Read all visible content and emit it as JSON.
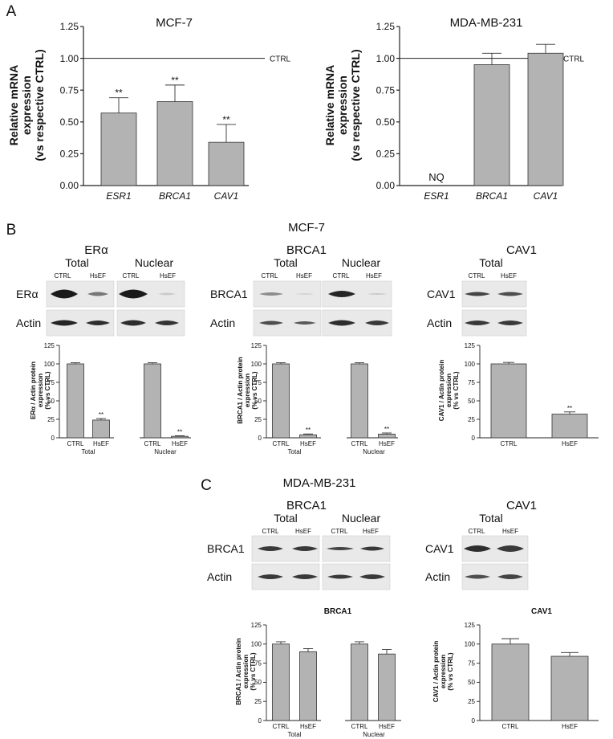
{
  "panels": {
    "A": {
      "letter": "A",
      "ylabel": [
        "Relative mRNA",
        "expression",
        "(vs respective CTRL)"
      ],
      "ref_label": "CTRL",
      "charts": [
        {
          "title": "MCF-7",
          "nq": "",
          "categories": [
            "ESR1",
            "BRCA1",
            "CAV1"
          ],
          "values": [
            0.57,
            0.66,
            0.34
          ],
          "errors": [
            0.12,
            0.13,
            0.14
          ],
          "sig": [
            "**",
            "**",
            "**"
          ]
        },
        {
          "title": "MDA-MB-231",
          "nq": "NQ",
          "categories": [
            "ESR1",
            "BRCA1",
            "CAV1"
          ],
          "values": [
            null,
            0.95,
            1.04
          ],
          "errors": [
            0,
            0.09,
            0.07
          ],
          "sig": [
            "",
            "",
            ""
          ]
        }
      ]
    },
    "B": {
      "letter": "B",
      "title": "MCF-7",
      "blots": [
        {
          "protein": "ERα",
          "groups": [
            "Total",
            "Nuclear"
          ],
          "lanes": [
            "CTRL",
            "HsEF"
          ],
          "rows": [
            "ERα",
            "Actin"
          ]
        },
        {
          "protein": "BRCA1",
          "groups": [
            "Total",
            "Nuclear"
          ],
          "lanes": [
            "CTRL",
            "HsEF"
          ],
          "rows": [
            "BRCA1",
            "Actin"
          ]
        },
        {
          "protein": "CAV1",
          "groups": [
            "Total"
          ],
          "lanes": [
            "CTRL",
            "HsEF"
          ],
          "rows": [
            "CAV1",
            "Actin"
          ]
        }
      ]
    },
    "C": {
      "letter": "C",
      "title": "MDA-MB-231",
      "blots": [
        {
          "protein": "BRCA1",
          "groups": [
            "Total",
            "Nuclear"
          ],
          "lanes": [
            "CTRL",
            "HsEF"
          ],
          "rows": [
            "BRCA1",
            "Actin"
          ]
        },
        {
          "protein": "CAV1",
          "groups": [
            "Total"
          ],
          "lanes": [
            "CTRL",
            "HsEF"
          ],
          "rows": [
            "CAV1",
            "Actin"
          ]
        }
      ]
    }
  },
  "chart_data": [
    {
      "type": "bar",
      "title": "MCF-7",
      "categories": [
        "ESR1",
        "BRCA1",
        "CAV1"
      ],
      "values": [
        0.57,
        0.66,
        0.34
      ],
      "errors": [
        0.12,
        0.13,
        0.14
      ],
      "significance": [
        "**",
        "**",
        "**"
      ],
      "ylabel": "Relative mRNA expression (vs respective CTRL)",
      "ylim": [
        0,
        1.25
      ],
      "yticks": [
        "0.00",
        "0.25",
        "0.50",
        "0.75",
        "1.00",
        "1.25"
      ],
      "reference_line": {
        "value": 1.0,
        "label": "CTRL"
      }
    },
    {
      "type": "bar",
      "title": "MDA-MB-231",
      "categories": [
        "ESR1",
        "BRCA1",
        "CAV1"
      ],
      "values": [
        null,
        0.95,
        1.04
      ],
      "errors": [
        0,
        0.09,
        0.07
      ],
      "annotations": [
        "NQ",
        "",
        ""
      ],
      "ylabel": "Relative mRNA expression (vs respective CTRL)",
      "ylim": [
        0,
        1.25
      ],
      "yticks": [
        "0.00",
        "0.25",
        "0.50",
        "0.75",
        "1.00",
        "1.25"
      ],
      "reference_line": {
        "value": 1.0,
        "label": "CTRL"
      }
    },
    {
      "type": "bar",
      "title": "",
      "ylabel": [
        "ERα / Actin protein",
        "expression",
        "(% vs CTRL)"
      ],
      "ylim": [
        0,
        125
      ],
      "yticks": [
        "0",
        "25",
        "50",
        "75",
        "100",
        "125"
      ],
      "groups": [
        "Total",
        "Nuclear"
      ],
      "categories": [
        "CTRL",
        "HsEF",
        "CTRL",
        "HsEF"
      ],
      "values": [
        100,
        24,
        100,
        2
      ],
      "errors": [
        1.5,
        2,
        1.5,
        0.8
      ],
      "significance": [
        "",
        "**",
        "",
        "**"
      ]
    },
    {
      "type": "bar",
      "title": "",
      "ylabel": [
        "BRCA1 / Actin protein",
        "expression",
        "(% vs CTRL)"
      ],
      "ylim": [
        0,
        125
      ],
      "yticks": [
        "0",
        "25",
        "50",
        "75",
        "100",
        "125"
      ],
      "groups": [
        "Total",
        "Nuclear"
      ],
      "categories": [
        "CTRL",
        "HsEF",
        "CTRL",
        "HsEF"
      ],
      "values": [
        100,
        4,
        100,
        5
      ],
      "errors": [
        1.5,
        1.2,
        1.5,
        1.5
      ],
      "significance": [
        "",
        "**",
        "",
        "**"
      ]
    },
    {
      "type": "bar",
      "title": "",
      "ylabel": [
        "CAV1 / Actin protein",
        "expression",
        "(% vs CTRL)"
      ],
      "ylim": [
        0,
        125
      ],
      "yticks": [
        "0",
        "25",
        "50",
        "75",
        "100",
        "125"
      ],
      "groups": [],
      "categories": [
        "CTRL",
        "HsEF"
      ],
      "values": [
        100,
        32
      ],
      "errors": [
        2,
        3
      ],
      "significance": [
        "",
        "**"
      ]
    },
    {
      "type": "bar",
      "title": "BRCA1",
      "ylabel": [
        "BRCA1 / Actin protein",
        "expression",
        "(% vs CTRL)"
      ],
      "ylim": [
        0,
        125
      ],
      "yticks": [
        "0",
        "25",
        "50",
        "75",
        "100",
        "125"
      ],
      "groups": [
        "Total",
        "Nuclear"
      ],
      "categories": [
        "CTRL",
        "HsEF",
        "CTRL",
        "HsEF"
      ],
      "values": [
        100,
        90,
        100,
        87
      ],
      "errors": [
        3,
        4,
        3,
        6
      ],
      "significance": [
        "",
        "",
        "",
        ""
      ]
    },
    {
      "type": "bar",
      "title": "CAV1",
      "ylabel": [
        "CAV1 / Actin protein",
        "expression",
        "(% vs CTRL)"
      ],
      "ylim": [
        0,
        125
      ],
      "yticks": [
        "0",
        "25",
        "50",
        "75",
        "100",
        "125"
      ],
      "groups": [],
      "categories": [
        "CTRL",
        "HsEF"
      ],
      "values": [
        100,
        84
      ],
      "errors": [
        7,
        5
      ],
      "significance": [
        "",
        ""
      ]
    }
  ]
}
